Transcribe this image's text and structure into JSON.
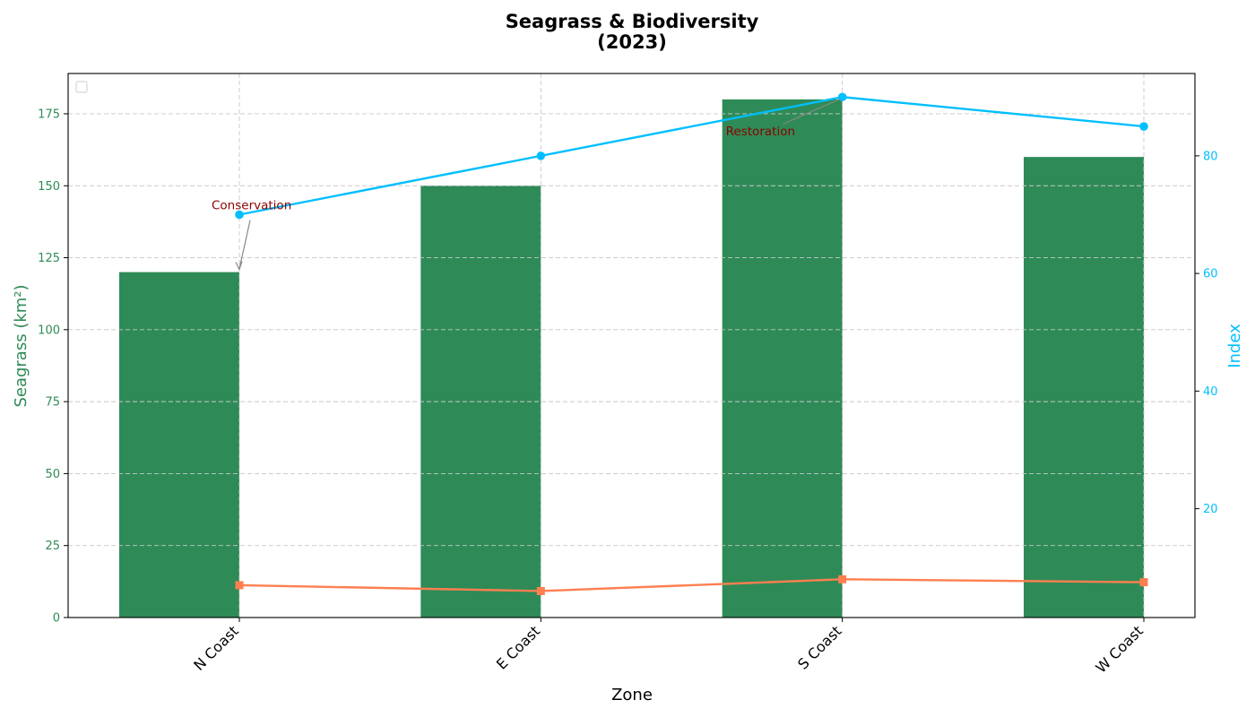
{
  "chart_data": {
    "type": "bar",
    "title": "Seagrass & Biodiversity\n(2023)",
    "xlabel": "Zone",
    "ylabel": "Seagrass (km²)",
    "ylabel_right": "Index",
    "categories": [
      "N Coast",
      "E Coast",
      "S Coast",
      "W Coast"
    ],
    "ylim": [
      0,
      189
    ],
    "ylim_right": [
      1.5,
      94
    ],
    "yticks": [
      0,
      25,
      50,
      75,
      100,
      125,
      150,
      175
    ],
    "yticks_right": [
      20,
      40,
      60,
      80
    ],
    "grid": true,
    "legend": "top-left (empty)",
    "series": [
      {
        "kind": "bar",
        "axis": "left",
        "values": [
          120,
          150,
          180,
          160
        ],
        "color": "#2e8b57"
      },
      {
        "kind": "line",
        "axis": "right",
        "marker": "circle",
        "values": [
          70,
          80,
          90,
          85
        ],
        "color": "#00bfff"
      },
      {
        "kind": "line",
        "axis": "right",
        "marker": "square",
        "values": [
          7,
          6,
          8,
          7.5
        ],
        "color": "#ff7f50"
      }
    ],
    "annotations": [
      {
        "text": "Conservation",
        "category": "N Coast",
        "value": 120,
        "axis": "left"
      },
      {
        "text": "Restoration",
        "category": "S Coast",
        "value": 90,
        "axis": "right"
      }
    ],
    "colors": {
      "axis_left": "#2e8b57",
      "axis_right": "#00bfff",
      "annotation_text": "#8b0000",
      "annotation_arrow": "#888888"
    }
  }
}
